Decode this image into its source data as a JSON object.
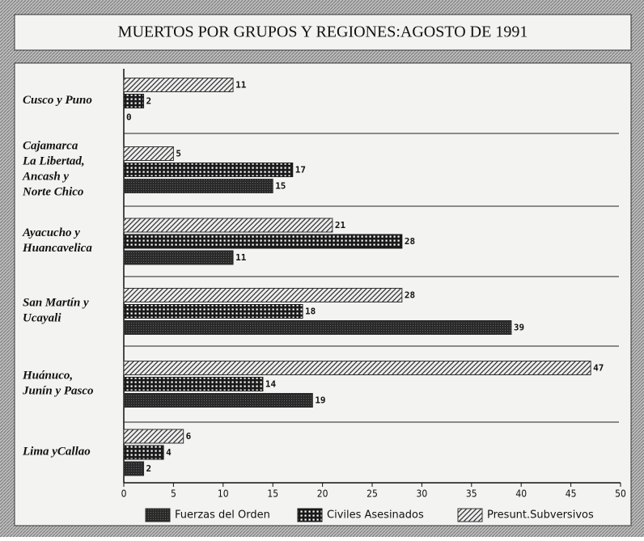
{
  "chart_data": {
    "type": "hbar",
    "title": "MUERTOS POR GRUPOS Y REGIONES:AGOSTO DE 1991",
    "categories": [
      "Cusco y Puno",
      "Cajamarca\nLa Libertad,\nAncash  y\nNorte Chico",
      "Ayacucho  y\nHuancavelica",
      "San Martín  y\nUcayali",
      "Huánuco,\nJunín y Pasco",
      "Lima yCallao"
    ],
    "series": [
      {
        "name": "Fuerzas del Orden",
        "color": "#2a2a2a",
        "pattern": "solid",
        "values": [
          0,
          15,
          11,
          39,
          19,
          2
        ]
      },
      {
        "name": "Civiles Asesinados",
        "color": "#1a1a1a",
        "pattern": "grid",
        "values": [
          2,
          17,
          28,
          18,
          14,
          4
        ]
      },
      {
        "name": "Presunt.Subversivos",
        "color": "#333333",
        "pattern": "hatch",
        "values": [
          11,
          5,
          21,
          28,
          47,
          6
        ]
      }
    ],
    "xlim": [
      0,
      50
    ],
    "xticks": [
      0,
      5,
      10,
      15,
      20,
      25,
      30,
      35,
      40,
      45,
      50
    ],
    "legend": "bottom"
  }
}
